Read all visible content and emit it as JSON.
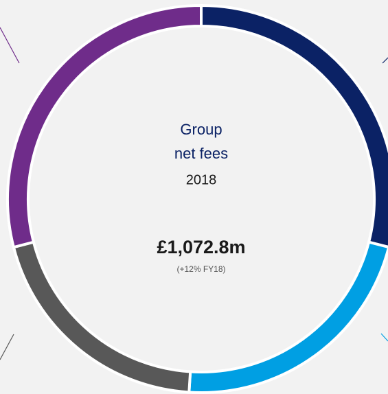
{
  "chart_data": {
    "type": "donut",
    "title_lines": [
      "Group",
      "net fees"
    ],
    "subtitle": "2018",
    "total_label": "£1,072.8m",
    "change_label": "(+12% FY18)",
    "categories": [
      null,
      null,
      null,
      null
    ],
    "values": [
      29,
      22,
      20,
      29
    ],
    "colors": [
      "#0b2265",
      "#009fe3",
      "#585858",
      "#6f2c8a"
    ]
  }
}
